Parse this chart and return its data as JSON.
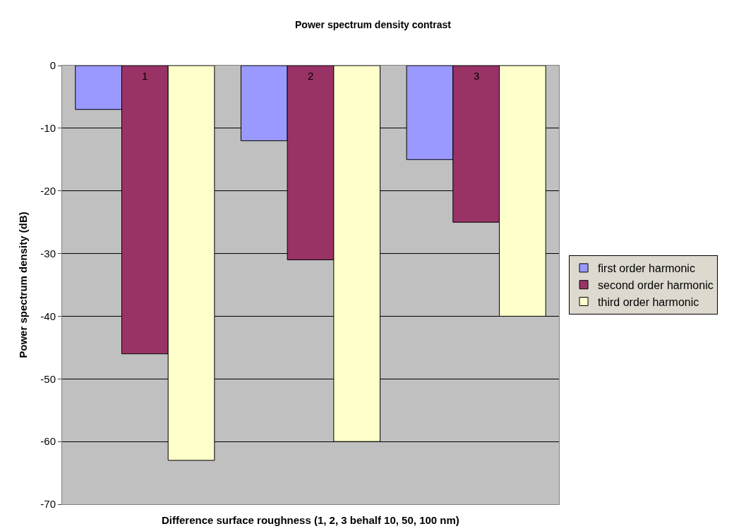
{
  "chart_data": {
    "type": "bar",
    "title": "Power spectrum density contrast",
    "xlabel": "Difference surface roughness (1, 2, 3 behalf 10, 50, 100 nm)",
    "ylabel": "Power spectrum density (dB)",
    "categories": [
      "1",
      "2",
      "3"
    ],
    "series": [
      {
        "name": "first order harmonic",
        "color": "#9999ff",
        "values": [
          -7,
          -12,
          -15
        ]
      },
      {
        "name": "second order harmonic",
        "color": "#993366",
        "values": [
          -46,
          -31,
          -25
        ]
      },
      {
        "name": "third order harmonic",
        "color": "#ffffcc",
        "values": [
          -63,
          -60,
          -40
        ]
      }
    ],
    "ylim": [
      -70,
      0
    ],
    "yticks": [
      -70,
      -60,
      -50,
      -40,
      -30,
      -20,
      -10,
      0
    ],
    "grid": "y",
    "legend": "right"
  }
}
